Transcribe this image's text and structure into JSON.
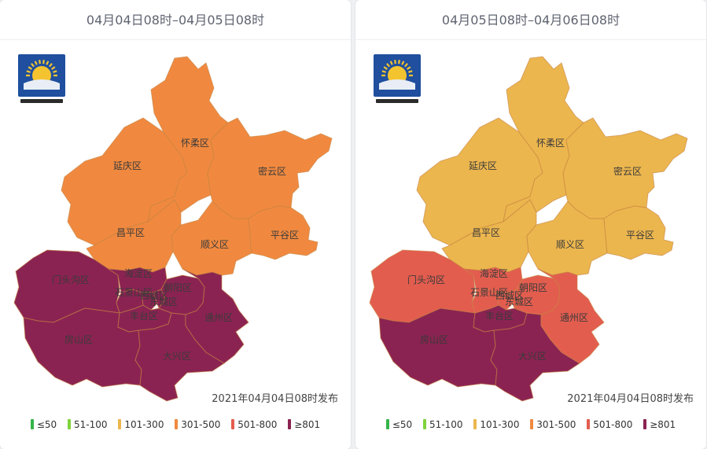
{
  "panels": [
    {
      "title": "04月04日08时–04月05日08时",
      "issued": "2021年04月04日08时发布",
      "district_colors": {
        "yanqing": "#f0893f",
        "huairou": "#f0893f",
        "miyun": "#f0893f",
        "changping": "#f0893f",
        "shunyi": "#f0893f",
        "pinggu": "#f0893f",
        "mentougou": "#8b2352",
        "haidian": "#8b2352",
        "shijingshan": "#8b2352",
        "chaoyang": "#8b2352",
        "xicheng": "#8b2352",
        "dongcheng": "#8b2352",
        "fengtai": "#8b2352",
        "tongzhou": "#8b2352",
        "fangshan": "#8b2352",
        "daxing": "#8b2352"
      }
    },
    {
      "title": "04月05日08时–04月06日08时",
      "issued": "2021年04月04日08时发布",
      "district_colors": {
        "yanqing": "#ecb64e",
        "huairou": "#ecb64e",
        "miyun": "#ecb64e",
        "changping": "#ecb64e",
        "shunyi": "#ecb64e",
        "pinggu": "#ecb64e",
        "mentougou": "#e35d4f",
        "haidian": "#e35d4f",
        "shijingshan": "#e35d4f",
        "chaoyang": "#e35d4f",
        "xicheng": "#e35d4f",
        "dongcheng": "#e35d4f",
        "fengtai": "#8b2352",
        "tongzhou": "#e35d4f",
        "fangshan": "#8b2352",
        "daxing": "#8b2352"
      }
    }
  ],
  "districts": {
    "yanqing": "延庆区",
    "huairou": "怀柔区",
    "miyun": "密云区",
    "changping": "昌平区",
    "shunyi": "顺义区",
    "pinggu": "平谷区",
    "mentougou": "门头沟区",
    "haidian": "海淀区",
    "shijingshan": "石景山区",
    "chaoyang": "朝阳区",
    "xicheng": "西城区",
    "dongcheng": "东城区",
    "fengtai": "丰台区",
    "tongzhou": "通州区",
    "fangshan": "房山区",
    "daxing": "大兴区"
  },
  "legend": [
    {
      "label": "≤50",
      "color": "#35b44a"
    },
    {
      "label": "51-100",
      "color": "#7ed33b"
    },
    {
      "label": "101-300",
      "color": "#ecb64e"
    },
    {
      "label": "301-500",
      "color": "#f0893f"
    },
    {
      "label": "501-800",
      "color": "#e35d4f"
    },
    {
      "label": "≥801",
      "color": "#8b2352"
    }
  ]
}
